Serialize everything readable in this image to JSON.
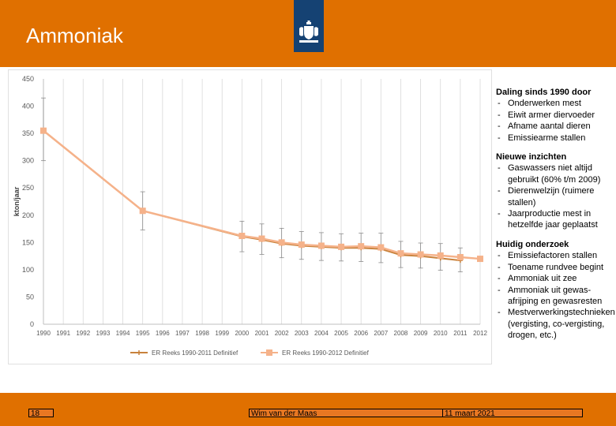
{
  "header": {
    "title": "Ammoniak",
    "background": "#e07000",
    "logo_background": "#154273",
    "logo_icon": "coat-of-arms-icon"
  },
  "chart_data": {
    "type": "line",
    "ylabel": "kton/jaar",
    "xlabel": "",
    "ylim": [
      0,
      450
    ],
    "yticks": [
      0,
      50,
      100,
      150,
      200,
      250,
      300,
      350,
      400,
      450
    ],
    "categories": [
      "1990",
      "1991",
      "1992",
      "1993",
      "1994",
      "1995",
      "1996",
      "1997",
      "1998",
      "1999",
      "2000",
      "2001",
      "2002",
      "2003",
      "2004",
      "2005",
      "2006",
      "2007",
      "2008",
      "2009",
      "2010",
      "2011",
      "2012"
    ],
    "grid": "vertical",
    "legend_position": "bottom",
    "series": [
      {
        "name": "ER Reeks 1990-2011 Definitief",
        "color": "#c8823c",
        "marker": "cross",
        "points": [
          {
            "x": "1990",
            "y": 355
          },
          {
            "x": "1995",
            "y": 208
          },
          {
            "x": "2000",
            "y": 161
          },
          {
            "x": "2001",
            "y": 155
          },
          {
            "x": "2002",
            "y": 148
          },
          {
            "x": "2003",
            "y": 144
          },
          {
            "x": "2004",
            "y": 142
          },
          {
            "x": "2005",
            "y": 140
          },
          {
            "x": "2006",
            "y": 140
          },
          {
            "x": "2007",
            "y": 138
          },
          {
            "x": "2008",
            "y": 127
          },
          {
            "x": "2009",
            "y": 125
          },
          {
            "x": "2010",
            "y": 121
          },
          {
            "x": "2011",
            "y": 117
          }
        ],
        "error_bars": [
          {
            "x": "1990",
            "low": 300,
            "high": 415
          },
          {
            "x": "1995",
            "low": 173,
            "high": 243
          },
          {
            "x": "2000",
            "low": 133,
            "high": 189
          },
          {
            "x": "2001",
            "low": 128,
            "high": 184
          },
          {
            "x": "2002",
            "low": 122,
            "high": 176
          },
          {
            "x": "2003",
            "low": 119,
            "high": 170
          },
          {
            "x": "2004",
            "low": 117,
            "high": 168
          },
          {
            "x": "2005",
            "low": 116,
            "high": 166
          },
          {
            "x": "2006",
            "low": 115,
            "high": 167
          },
          {
            "x": "2007",
            "low": 113,
            "high": 167
          },
          {
            "x": "2008",
            "low": 104,
            "high": 152
          },
          {
            "x": "2009",
            "low": 103,
            "high": 149
          },
          {
            "x": "2010",
            "low": 99,
            "high": 148
          },
          {
            "x": "2011",
            "low": 96,
            "high": 140
          }
        ]
      },
      {
        "name": "ER Reeks 1990-2012 Definitief",
        "color": "#f5b28a",
        "marker": "square",
        "points": [
          {
            "x": "1990",
            "y": 355
          },
          {
            "x": "1995",
            "y": 208
          },
          {
            "x": "2000",
            "y": 162
          },
          {
            "x": "2001",
            "y": 157
          },
          {
            "x": "2002",
            "y": 150
          },
          {
            "x": "2003",
            "y": 146
          },
          {
            "x": "2004",
            "y": 144
          },
          {
            "x": "2005",
            "y": 142
          },
          {
            "x": "2006",
            "y": 143
          },
          {
            "x": "2007",
            "y": 141
          },
          {
            "x": "2008",
            "y": 130
          },
          {
            "x": "2009",
            "y": 128
          },
          {
            "x": "2010",
            "y": 126
          },
          {
            "x": "2011",
            "y": 123
          },
          {
            "x": "2012",
            "y": 120
          }
        ]
      }
    ]
  },
  "notes": [
    {
      "heading": "Daling sinds 1990 door",
      "items": [
        "Onderwerken mest",
        "Eiwit armer diervoeder",
        "Afname aantal dieren",
        "Emissiearme stallen"
      ]
    },
    {
      "heading": "Nieuwe inzichten",
      "items": [
        "Gaswassers niet altijd gebruikt (60% t/m 2009)",
        "Dierenwelzijn (ruimere stallen)",
        "Jaarproductie mest in hetzelfde jaar geplaatst"
      ]
    },
    {
      "heading": "Huidig onderzoek",
      "items": [
        "Emissiefactoren stallen",
        "Toename rundvee begint",
        "Ammoniak uit zee",
        "Ammoniak uit gewas-afrijping en gewasresten",
        "Mestverwerkingstechnieken (vergisting, co-vergisting, drogen, etc.)"
      ]
    }
  ],
  "footer": {
    "page_number": "18",
    "author": "Wim van der Maas",
    "date": "11 maart 2021",
    "background": "#e07000"
  }
}
